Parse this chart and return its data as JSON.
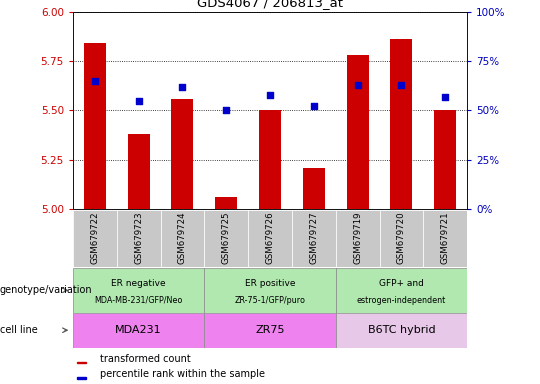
{
  "title": "GDS4067 / 206813_at",
  "samples": [
    "GSM679722",
    "GSM679723",
    "GSM679724",
    "GSM679725",
    "GSM679726",
    "GSM679727",
    "GSM679719",
    "GSM679720",
    "GSM679721"
  ],
  "bar_values": [
    5.84,
    5.38,
    5.56,
    5.06,
    5.5,
    5.21,
    5.78,
    5.86,
    5.5
  ],
  "percentile_values": [
    65,
    55,
    62,
    50,
    58,
    52,
    63,
    63,
    57
  ],
  "ylim_left": [
    5.0,
    6.0
  ],
  "ylim_right": [
    0,
    100
  ],
  "yticks_left": [
    5.0,
    5.25,
    5.5,
    5.75,
    6.0
  ],
  "yticks_right": [
    0,
    25,
    50,
    75,
    100
  ],
  "bar_color": "#cc0000",
  "scatter_color": "#0000cc",
  "tick_area_color": "#c8c8c8",
  "geno_color": "#b0e8b0",
  "cell_color": "#ee82ee",
  "cell_color_light": "#f0b0f0",
  "groups": [
    {
      "label": "ER negative",
      "sublabel": "MDA-MB-231/GFP/Neo",
      "cell_line": "MDA231",
      "start": 0,
      "end": 3
    },
    {
      "label": "ER positive",
      "sublabel": "ZR-75-1/GFP/puro",
      "cell_line": "ZR75",
      "start": 3,
      "end": 6
    },
    {
      "label": "GFP+ and",
      "sublabel": "estrogen-independent",
      "cell_line": "B6TC hybrid",
      "start": 6,
      "end": 9
    }
  ],
  "legend_items": [
    {
      "label": "transformed count",
      "color": "#cc0000"
    },
    {
      "label": "percentile rank within the sample",
      "color": "#0000cc"
    }
  ],
  "left_labels": [
    "genotype/variation",
    "cell line"
  ],
  "ylabel_left_color": "#cc0000",
  "ylabel_right_color": "#0000bb"
}
